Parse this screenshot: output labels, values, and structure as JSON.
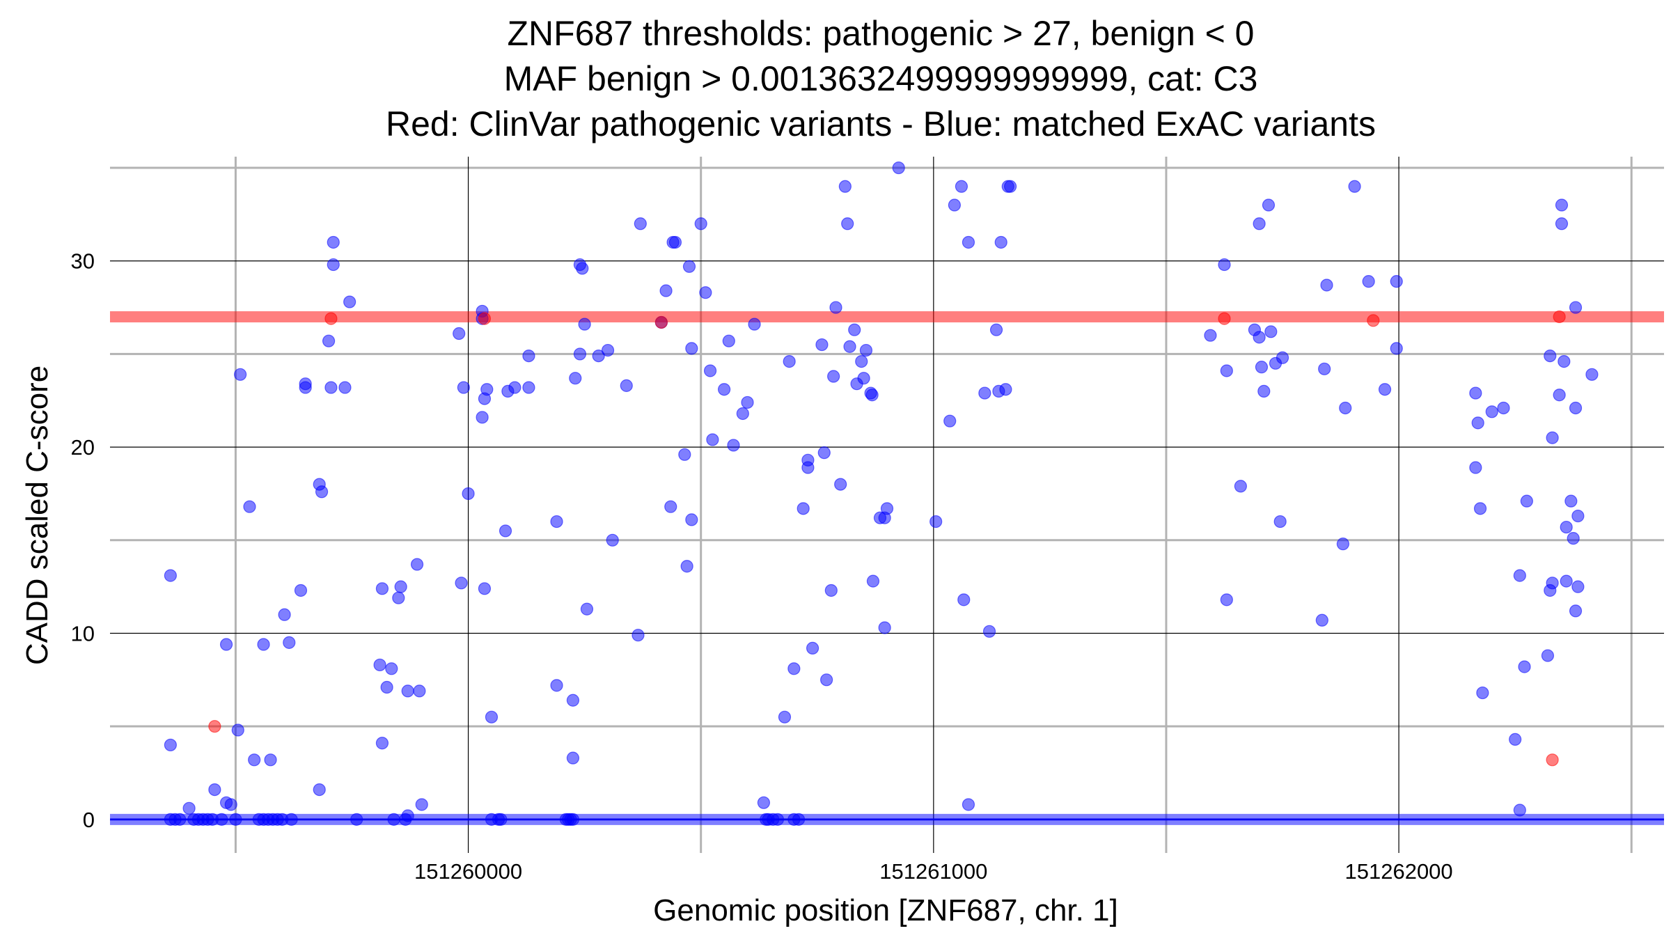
{
  "chart_data": {
    "type": "scatter",
    "title_lines": [
      "ZNF687 thresholds: pathogenic > 27, benign < 0",
      "MAF benign > 0.0013632499999999999, cat: C3",
      "Red: ClinVar pathogenic variants - Blue: matched ExAC variants"
    ],
    "xlabel": "Genomic position [ZNF687, chr. 1]",
    "ylabel": "CADD scaled C-score",
    "xlim": [
      151259230,
      151262570
    ],
    "ylim": [
      -1.8,
      35.6
    ],
    "x_ticks": [
      151260000,
      151261000,
      151262000
    ],
    "x_tick_labels": [
      "151260000",
      "151261000",
      "151262000"
    ],
    "x_minor_ticks": [
      151259500,
      151260500,
      151261500,
      151262500
    ],
    "y_ticks": [
      0,
      10,
      20,
      30
    ],
    "y_tick_labels": [
      "0",
      "10",
      "20",
      "30"
    ],
    "y_minor_ticks": [
      5,
      15,
      25,
      35
    ],
    "grid": true,
    "thresholds": [
      {
        "name": "pathogenic",
        "y": 27,
        "color": "#ff0000"
      },
      {
        "name": "benign",
        "y": 0,
        "color": "#0000ff"
      }
    ],
    "series": [
      {
        "color": "#0000ff",
        "points": [
          [
            151259360,
            13.1
          ],
          [
            151259360,
            4
          ],
          [
            151259360,
            0
          ],
          [
            151259370,
            0
          ],
          [
            151259380,
            0
          ],
          [
            151259400,
            0.6
          ],
          [
            151259410,
            0
          ],
          [
            151259420,
            0
          ],
          [
            151259430,
            0
          ],
          [
            151259440,
            0
          ],
          [
            151259450,
            0
          ],
          [
            151259455,
            1.6
          ],
          [
            151259470,
            0
          ],
          [
            151259480,
            9.4
          ],
          [
            151259480,
            0.9
          ],
          [
            151259490,
            0.8
          ],
          [
            151259500,
            0
          ],
          [
            151259505,
            4.8
          ],
          [
            151259510,
            23.9
          ],
          [
            151259530,
            16.8
          ],
          [
            151259540,
            3.2
          ],
          [
            151259550,
            0
          ],
          [
            151259560,
            9.4
          ],
          [
            151259560,
            0
          ],
          [
            151259570,
            0
          ],
          [
            151259575,
            3.2
          ],
          [
            151259580,
            0
          ],
          [
            151259590,
            0
          ],
          [
            151259600,
            0
          ],
          [
            151259605,
            11
          ],
          [
            151259615,
            9.5
          ],
          [
            151259620,
            0
          ],
          [
            151259640,
            12.3
          ],
          [
            151259650,
            23.4
          ],
          [
            151259650,
            23.2
          ],
          [
            151259680,
            1.6
          ],
          [
            151259680,
            18
          ],
          [
            151259685,
            17.6
          ],
          [
            151259700,
            25.7
          ],
          [
            151259705,
            23.2
          ],
          [
            151259710,
            31
          ],
          [
            151259710,
            29.8
          ],
          [
            151259735,
            23.2
          ],
          [
            151259745,
            27.8
          ],
          [
            151259760,
            0
          ],
          [
            151259810,
            8.3
          ],
          [
            151259815,
            4.1
          ],
          [
            151259815,
            12.4
          ],
          [
            151259825,
            7.1
          ],
          [
            151259835,
            8.1
          ],
          [
            151259840,
            0
          ],
          [
            151259850,
            11.9
          ],
          [
            151259855,
            12.5
          ],
          [
            151259865,
            0
          ],
          [
            151259870,
            6.9
          ],
          [
            151259870,
            0.2
          ],
          [
            151259890,
            13.7
          ],
          [
            151259895,
            6.9
          ],
          [
            151259900,
            0.8
          ],
          [
            151259985,
            12.7
          ],
          [
            151259980,
            26.1
          ],
          [
            151259990,
            23.2
          ],
          [
            151260000,
            17.5
          ],
          [
            151260030,
            27.3
          ],
          [
            151260030,
            26.9
          ],
          [
            151260030,
            21.6
          ],
          [
            151260035,
            12.4
          ],
          [
            151260035,
            22.6
          ],
          [
            151260040,
            23.1
          ],
          [
            151260050,
            5.5
          ],
          [
            151260050,
            0
          ],
          [
            151260065,
            0
          ],
          [
            151260070,
            0
          ],
          [
            151260080,
            15.5
          ],
          [
            151260085,
            23.0
          ],
          [
            151260100,
            23.2
          ],
          [
            151260130,
            23.2
          ],
          [
            151260130,
            24.9
          ],
          [
            151260190,
            7.2
          ],
          [
            151260190,
            16
          ],
          [
            151260210,
            0
          ],
          [
            151260215,
            0
          ],
          [
            151260220,
            0
          ],
          [
            151260225,
            0
          ],
          [
            151260225,
            6.4
          ],
          [
            151260225,
            3.3
          ],
          [
            151260230,
            23.7
          ],
          [
            151260240,
            25.0
          ],
          [
            151260240,
            29.8
          ],
          [
            151260245,
            29.6
          ],
          [
            151260250,
            26.6
          ],
          [
            151260255,
            11.3
          ],
          [
            151260280,
            24.9
          ],
          [
            151260300,
            25.2
          ],
          [
            151260310,
            15
          ],
          [
            151260340,
            23.3
          ],
          [
            151260365,
            9.9
          ],
          [
            151260370,
            32
          ],
          [
            151260415,
            26.7
          ],
          [
            151260425,
            28.4
          ],
          [
            151260435,
            16.8
          ],
          [
            151260440,
            31
          ],
          [
            151260445,
            31
          ],
          [
            151260465,
            19.6
          ],
          [
            151260470,
            13.6
          ],
          [
            151260475,
            29.7
          ],
          [
            151260480,
            16.1
          ],
          [
            151260480,
            25.3
          ],
          [
            151260500,
            32
          ],
          [
            151260510,
            28.3
          ],
          [
            151260520,
            24.1
          ],
          [
            151260525,
            20.4
          ],
          [
            151260550,
            23.1
          ],
          [
            151260560,
            25.7
          ],
          [
            151260570,
            20.1
          ],
          [
            151260590,
            21.8
          ],
          [
            151260600,
            22.4
          ],
          [
            151260615,
            26.6
          ],
          [
            151260635,
            0.9
          ],
          [
            151260640,
            0
          ],
          [
            151260645,
            0
          ],
          [
            151260655,
            0
          ],
          [
            151260665,
            0
          ],
          [
            151260680,
            5.5
          ],
          [
            151260690,
            24.6
          ],
          [
            151260700,
            8.1
          ],
          [
            151260700,
            0
          ],
          [
            151260710,
            0
          ],
          [
            151260720,
            16.7
          ],
          [
            151260730,
            18.9
          ],
          [
            151260730,
            19.3
          ],
          [
            151260740,
            9.2
          ],
          [
            151260760,
            25.5
          ],
          [
            151260765,
            19.7
          ],
          [
            151260770,
            7.5
          ],
          [
            151260780,
            12.3
          ],
          [
            151260785,
            23.8
          ],
          [
            151260790,
            27.5
          ],
          [
            151260800,
            18
          ],
          [
            151260810,
            34
          ],
          [
            151260815,
            32
          ],
          [
            151260820,
            25.4
          ],
          [
            151260830,
            26.3
          ],
          [
            151260835,
            23.4
          ],
          [
            151260845,
            24.6
          ],
          [
            151260850,
            23.7
          ],
          [
            151260855,
            25.2
          ],
          [
            151260865,
            22.9
          ],
          [
            151260868,
            22.8
          ],
          [
            151260870,
            12.8
          ],
          [
            151260885,
            16.2
          ],
          [
            151260895,
            16.2
          ],
          [
            151260895,
            10.3
          ],
          [
            151260900,
            16.7
          ],
          [
            151260925,
            35
          ],
          [
            151261005,
            16
          ],
          [
            151261035,
            21.4
          ],
          [
            151261045,
            33
          ],
          [
            151261060,
            34
          ],
          [
            151261065,
            11.8
          ],
          [
            151261075,
            31
          ],
          [
            151261075,
            0.8
          ],
          [
            151261110,
            22.9
          ],
          [
            151261120,
            10.1
          ],
          [
            151261135,
            26.3
          ],
          [
            151261140,
            23
          ],
          [
            151261145,
            31
          ],
          [
            151261155,
            23.1
          ],
          [
            151261160,
            34
          ],
          [
            151261165,
            34
          ],
          [
            151261595,
            26
          ],
          [
            151261625,
            29.8
          ],
          [
            151261630,
            24.1
          ],
          [
            151261630,
            11.8
          ],
          [
            151261660,
            17.9
          ],
          [
            151261690,
            26.3
          ],
          [
            151261700,
            25.9
          ],
          [
            151261700,
            32
          ],
          [
            151261705,
            24.3
          ],
          [
            151261710,
            23
          ],
          [
            151261720,
            33
          ],
          [
            151261725,
            26.2
          ],
          [
            151261735,
            24.5
          ],
          [
            151261745,
            16
          ],
          [
            151261750,
            24.8
          ],
          [
            151261835,
            10.7
          ],
          [
            151261845,
            28.7
          ],
          [
            151261840,
            24.2
          ],
          [
            151261880,
            14.8
          ],
          [
            151261885,
            22.1
          ],
          [
            151261905,
            34
          ],
          [
            151261935,
            28.9
          ],
          [
            151261970,
            23.1
          ],
          [
            151261995,
            28.9
          ],
          [
            151261995,
            25.3
          ],
          [
            151262165,
            22.9
          ],
          [
            151262170,
            21.3
          ],
          [
            151262175,
            16.7
          ],
          [
            151262165,
            18.9
          ],
          [
            151262180,
            6.8
          ],
          [
            151262200,
            21.9
          ],
          [
            151262225,
            22.1
          ],
          [
            151262250,
            4.3
          ],
          [
            151262260,
            13.1
          ],
          [
            151262260,
            0.5
          ],
          [
            151262270,
            8.2
          ],
          [
            151262275,
            17.1
          ],
          [
            151262320,
            8.8
          ],
          [
            151262325,
            12.3
          ],
          [
            151262330,
            12.7
          ],
          [
            151262325,
            24.9
          ],
          [
            151262330,
            20.5
          ],
          [
            151262345,
            22.8
          ],
          [
            151262350,
            32
          ],
          [
            151262350,
            33
          ],
          [
            151262355,
            24.6
          ],
          [
            151262360,
            12.8
          ],
          [
            151262360,
            15.7
          ],
          [
            151262370,
            17.1
          ],
          [
            151262375,
            15.1
          ],
          [
            151262380,
            11.2
          ],
          [
            151262380,
            22.1
          ],
          [
            151262385,
            16.3
          ],
          [
            151262385,
            12.5
          ],
          [
            151262380,
            27.5
          ],
          [
            151262415,
            23.9
          ]
        ]
      },
      {
        "color": "#ff0000",
        "points": [
          [
            151259455,
            5
          ],
          [
            151259705,
            26.9
          ],
          [
            151260035,
            26.9
          ],
          [
            151260415,
            26.7
          ],
          [
            151261625,
            26.9
          ],
          [
            151261945,
            26.8
          ],
          [
            151262345,
            27
          ],
          [
            151262330,
            3.2
          ]
        ]
      }
    ]
  }
}
